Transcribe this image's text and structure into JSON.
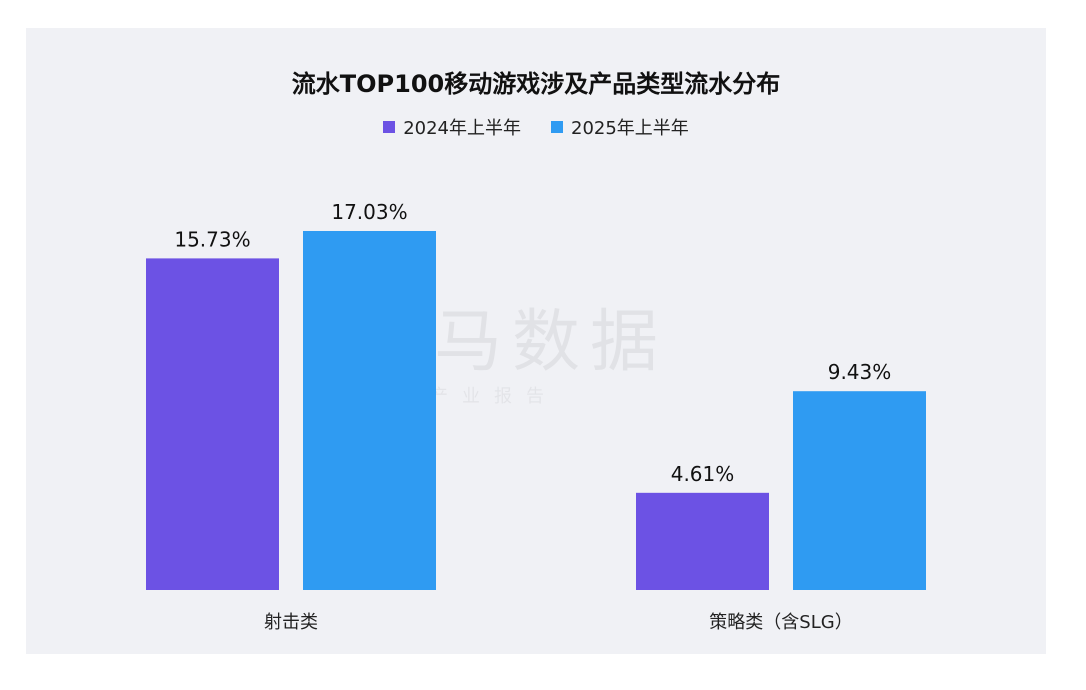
{
  "chart_data": {
    "type": "bar",
    "title": "流水TOP100移动游戏涉及产品类型流水分布",
    "categories": [
      "射击类",
      "策略类（含SLG）"
    ],
    "series": [
      {
        "name": "2024年上半年",
        "values": [
          15.73,
          4.61
        ],
        "color": "#6c52e4"
      },
      {
        "name": "2025年上半年",
        "values": [
          17.03,
          9.43
        ],
        "color": "#2f9bf2"
      }
    ],
    "value_labels": [
      [
        "15.73%",
        "4.61%"
      ],
      [
        "17.03%",
        "9.43%"
      ]
    ],
    "ylim": [
      0,
      18.5
    ],
    "legend_position": "top-center",
    "grid": false
  },
  "watermark": {
    "main": "伽马数据",
    "sub": "游戏产业报告"
  }
}
